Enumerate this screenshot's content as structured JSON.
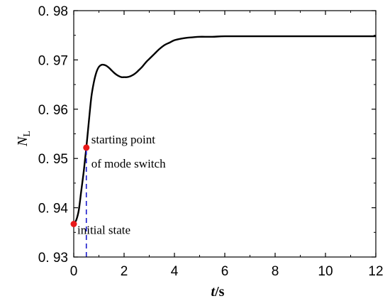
{
  "chart_data": {
    "type": "line",
    "title": "",
    "xlabel": {
      "main": "t",
      "unit": "/s"
    },
    "ylabel": {
      "main": "N",
      "sub": "L"
    },
    "xlim": [
      0,
      12
    ],
    "ylim": [
      0.93,
      0.98
    ],
    "xticks": [
      0,
      2,
      4,
      6,
      8,
      10,
      12
    ],
    "yticks": [
      0.93,
      0.94,
      0.95,
      0.96,
      0.97,
      0.98
    ],
    "xtick_labels": [
      "0",
      "2",
      "4",
      "6",
      "8",
      "10",
      "12"
    ],
    "ytick_labels": [
      "0. 93",
      "0. 94",
      "0. 95",
      "0. 96",
      "0. 97",
      "0. 98"
    ],
    "grid": false,
    "series": [
      {
        "color": "#000000",
        "x": [
          0,
          0.1,
          0.2,
          0.3,
          0.4,
          0.5,
          0.6,
          0.7,
          0.8,
          0.9,
          1.0,
          1.1,
          1.2,
          1.3,
          1.4,
          1.5,
          1.6,
          1.7,
          1.8,
          1.9,
          2.0,
          2.1,
          2.2,
          2.3,
          2.4,
          2.5,
          2.6,
          2.7,
          2.8,
          2.9,
          3.0,
          3.2,
          3.4,
          3.6,
          3.8,
          4.0,
          4.25,
          4.5,
          4.75,
          5.0,
          5.5,
          6.0,
          7.0,
          8.0,
          9.0,
          10.0,
          11.0,
          12.0
        ],
        "y": [
          0.9367,
          0.9375,
          0.9395,
          0.9435,
          0.9475,
          0.9522,
          0.9575,
          0.9625,
          0.9655,
          0.9675,
          0.9686,
          0.969,
          0.969,
          0.9688,
          0.9684,
          0.9679,
          0.9674,
          0.967,
          0.9667,
          0.9665,
          0.9665,
          0.9665,
          0.9666,
          0.9668,
          0.9671,
          0.9675,
          0.968,
          0.9685,
          0.9691,
          0.9697,
          0.9702,
          0.9712,
          0.9722,
          0.973,
          0.9735,
          0.974,
          0.9743,
          0.9745,
          0.9746,
          0.9747,
          0.9747,
          0.9748,
          0.9748,
          0.9748,
          0.9748,
          0.9748,
          0.9748,
          0.9748
        ]
      }
    ],
    "points": [
      {
        "label": "initial state",
        "x": 0,
        "y": 0.9367,
        "color": "#e8191a"
      },
      {
        "label_lines": [
          "starting point",
          "of mode switch"
        ],
        "x": 0.5,
        "y": 0.9522,
        "color": "#e8191a"
      }
    ],
    "vline": {
      "x": 0.5,
      "from_y": 0.93,
      "to_y": 0.9522,
      "color": "#1a1acc",
      "style": "dashed"
    }
  }
}
